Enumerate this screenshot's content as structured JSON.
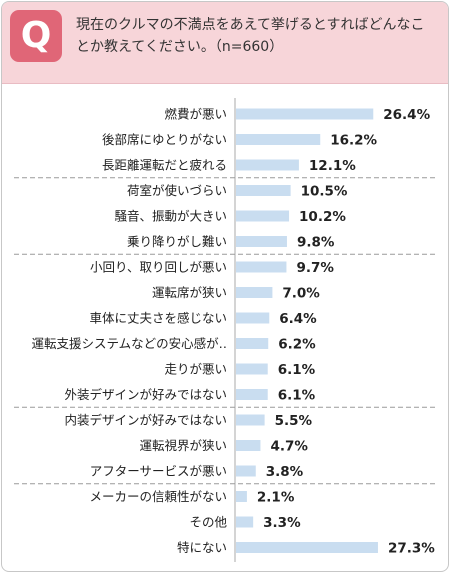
{
  "header": {
    "badge": "Q",
    "question": "現在のクルマの不満点をあえて挙げるとすればどんなことか教えてください。（n=660）"
  },
  "colors": {
    "bar": "#c9ddf0",
    "badge": "#e06677",
    "header_bg": "#f7d5d9"
  },
  "chart_data": {
    "type": "bar",
    "orientation": "horizontal",
    "categories": [
      "燃費が悪い",
      "後部席にゆとりがない",
      "長距離運転だと疲れる",
      "荷室が使いづらい",
      "騒音、振動が大きい",
      "乗り降りがし難い",
      "小回り、取り回しが悪い",
      "運転席が狭い",
      "車体に丈夫さを感じない",
      "運転支援システムなどの安心感が‥",
      "走りが悪い",
      "外装デザインが好みではない",
      "内装デザインが好みではない",
      "運転視界が狭い",
      "アフターサービスが悪い",
      "メーカーの信頼性がない",
      "その他",
      "特にない"
    ],
    "values": [
      26.4,
      16.2,
      12.1,
      10.5,
      10.2,
      9.8,
      9.7,
      7.0,
      6.4,
      6.2,
      6.1,
      6.1,
      5.5,
      4.7,
      3.8,
      2.1,
      3.3,
      27.3
    ],
    "value_labels": [
      "26.4%",
      "16.2%",
      "12.1%",
      "10.5%",
      "10.2%",
      "9.8%",
      "9.7%",
      "7.0%",
      "6.4%",
      "6.2%",
      "6.1%",
      "6.1%",
      "5.5%",
      "4.7%",
      "3.8%",
      "2.1%",
      "3.3%",
      "27.3%"
    ],
    "groups_after": [
      2,
      5,
      11,
      14
    ],
    "xlim": [
      0,
      30
    ],
    "unit": "%"
  }
}
